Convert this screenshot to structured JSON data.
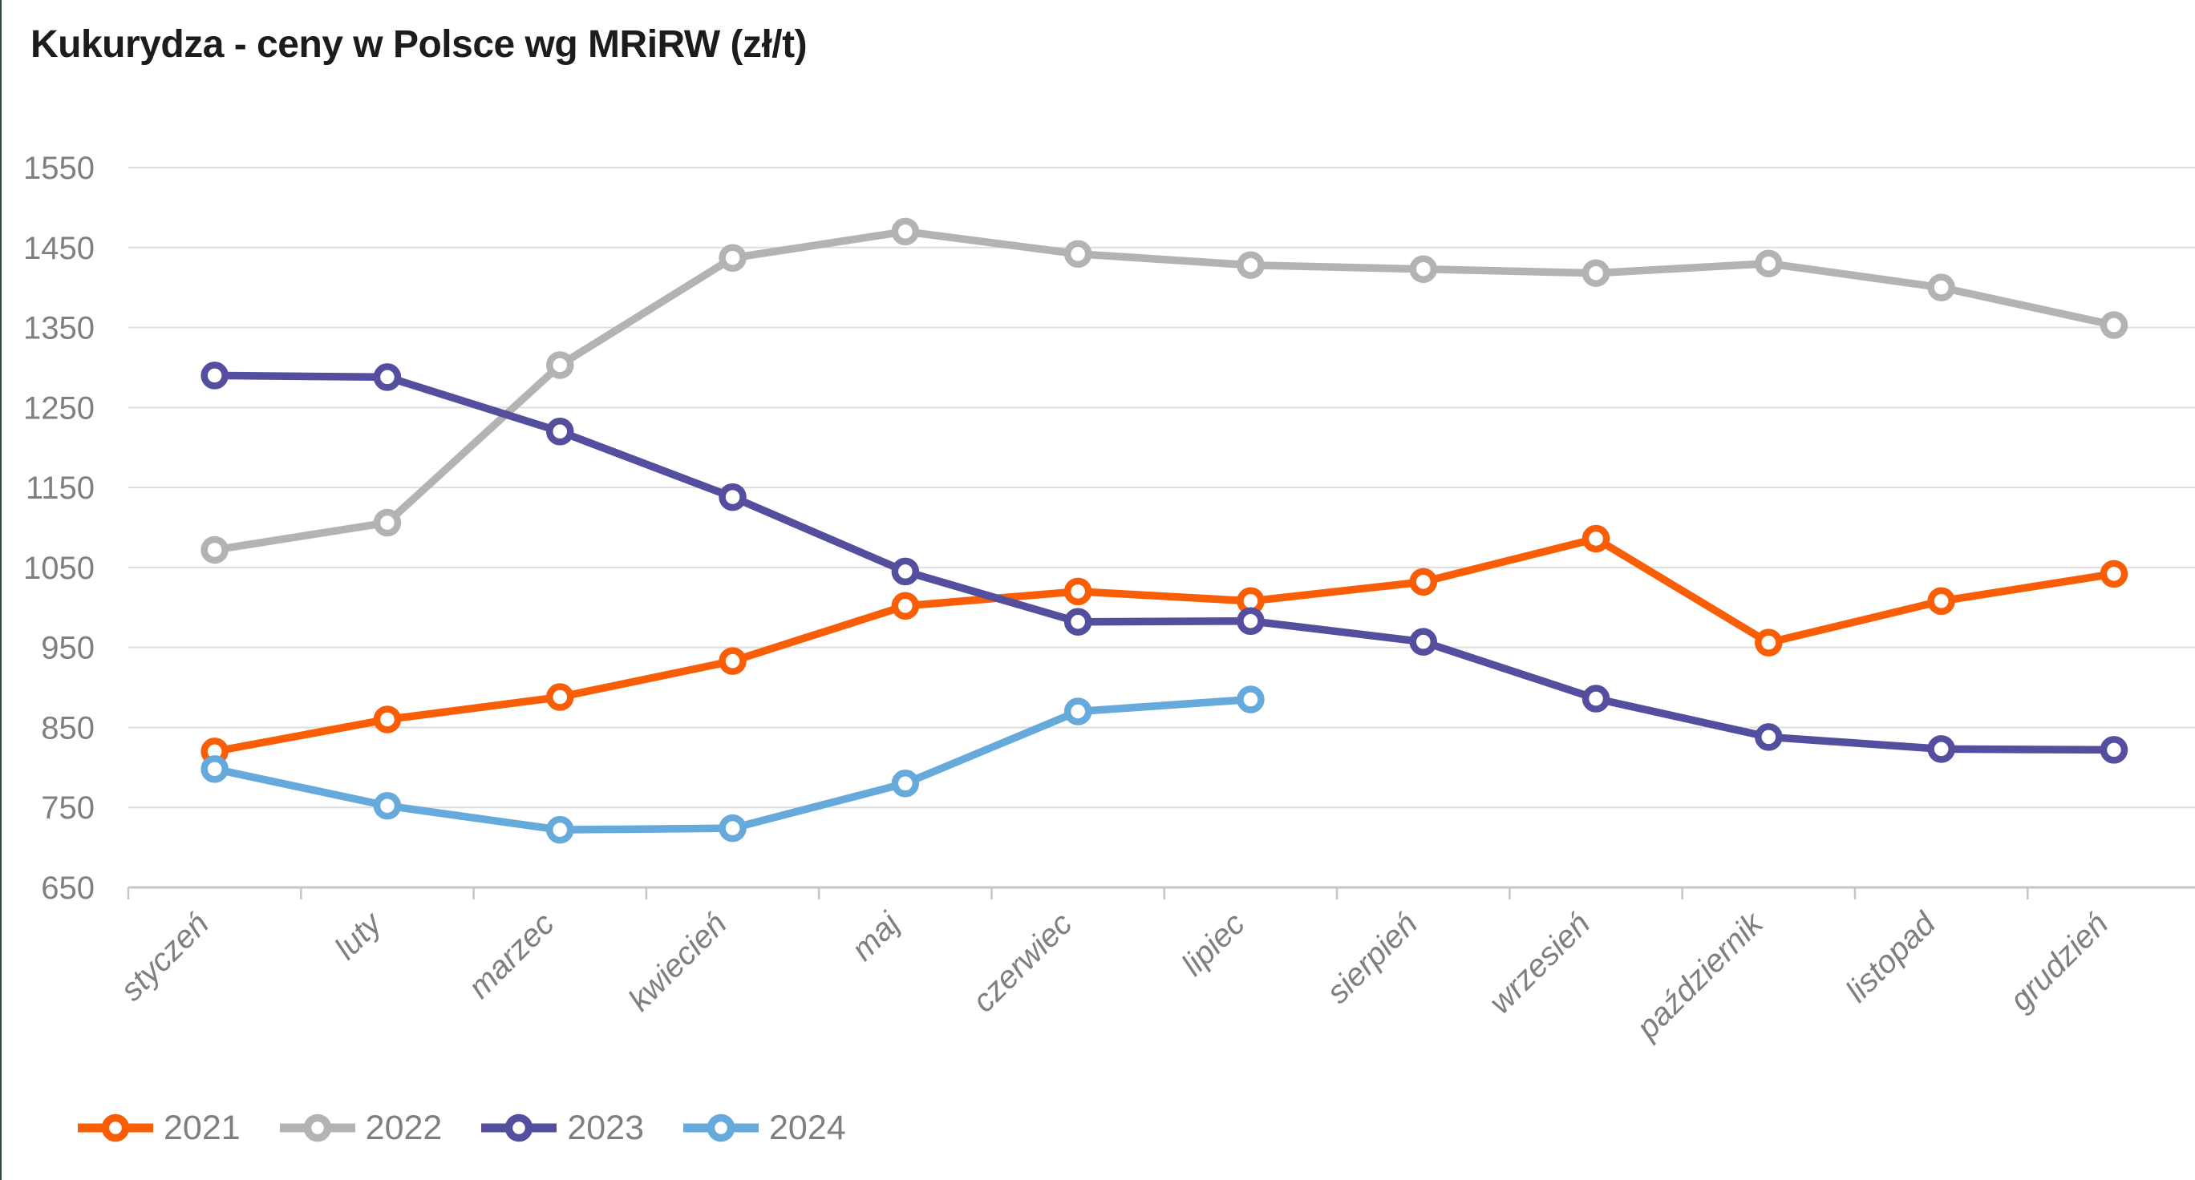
{
  "chart": {
    "title": "Kukurydza - ceny w Polsce wg MRiRW (zł/t)"
  },
  "chart_data": {
    "type": "line",
    "title": "Kukurydza - ceny w Polsce wg MRiRW (zł/t)",
    "unit": "zł/t",
    "grid": true,
    "legend_position": "bottom-left",
    "categories": [
      "styczeń",
      "luty",
      "marzec",
      "kwiecień",
      "maj",
      "czerwiec",
      "lipiec",
      "sierpień",
      "wrzesień",
      "październik",
      "listopad",
      "grudzień"
    ],
    "y_axis": {
      "min": 650,
      "max": 1550,
      "tick_step": 100,
      "ticks": [
        1550,
        1450,
        1350,
        1250,
        1150,
        1050,
        950,
        850,
        750,
        650
      ]
    },
    "series": [
      {
        "name": "2021",
        "color": "#F95D05",
        "values": [
          820,
          860,
          888,
          933,
          1002,
          1020,
          1008,
          1032,
          1086,
          956,
          1008,
          1042
        ]
      },
      {
        "name": "2022",
        "color": "#B3B3B3",
        "values": [
          1072,
          1106,
          1303,
          1437,
          1470,
          1442,
          1428,
          1423,
          1418,
          1430,
          1400,
          1353
        ]
      },
      {
        "name": "2023",
        "color": "#534F9E",
        "values": [
          1290,
          1288,
          1220,
          1138,
          1045,
          982,
          983,
          957,
          886,
          838,
          823,
          822
        ]
      },
      {
        "name": "2024",
        "color": "#66A9DB",
        "values": [
          798,
          752,
          722,
          724,
          780,
          870,
          885,
          null,
          null,
          null,
          null,
          null
        ]
      }
    ]
  },
  "colors": {
    "title": "#1C1C1C",
    "axis_text": "#7F7F7F",
    "gridline": "#DEDEDE",
    "axis_line": "#C6C6C6",
    "background": "#FFFFFF",
    "left_edge": "#2D4B35"
  }
}
